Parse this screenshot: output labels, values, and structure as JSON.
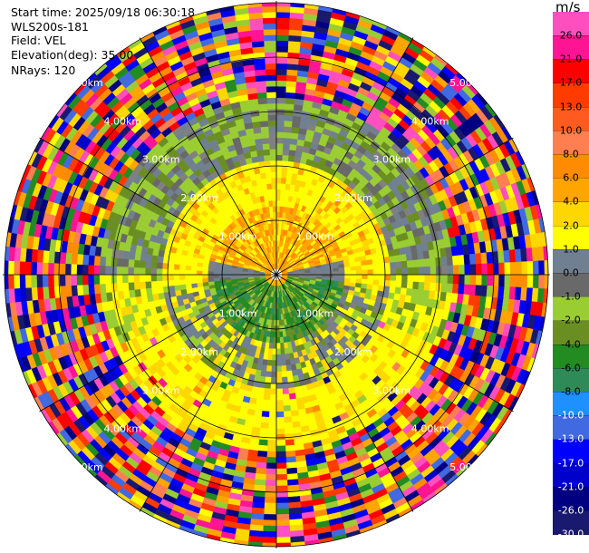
{
  "header": {
    "start_time": "Start time: 2025/09/18 06:30:18",
    "instrument": "WLS200s-181",
    "field": "Field: VEL",
    "elevation": "Elevation(deg): 35.00",
    "nrays": "NRays: 120"
  },
  "colorbar": {
    "unit": "m/s",
    "ticks": [
      "26.0",
      "21.0",
      "17.0",
      "13.0",
      "10.0",
      "8.0",
      "6.0",
      "4.0",
      "2.0",
      "1.0",
      "0.0",
      "-1.0",
      "-2.0",
      "-4.0",
      "-6.0",
      "-8.0",
      "-10.0",
      "-13.0",
      "-17.0",
      "-21.0",
      "-26.0",
      "-30.0"
    ],
    "light_ticks": [
      "-10.0",
      "-13.0",
      "-17.0",
      "-21.0",
      "-26.0",
      "-30.0"
    ],
    "colors": [
      "#ff4fbf",
      "#ff1493",
      "#ff0000",
      "#ff3b00",
      "#ff5a20",
      "#ff7f50",
      "#ff8c00",
      "#ffa500",
      "#ffd700",
      "#ffff00",
      "#708090",
      "#696969",
      "#9acd32",
      "#6b8e23",
      "#228b22",
      "#2e8b57",
      "#1e90ff",
      "#4169e1",
      "#0000ff",
      "#0000cd",
      "#000080",
      "#191970"
    ]
  },
  "range_ring_labels": [
    "1.00km",
    "2.00km",
    "3.00km",
    "4.00km",
    "5.00km"
  ],
  "ppi": {
    "field": "VEL",
    "nrays": 120,
    "elevation_deg": 35.0,
    "max_range_km": 5.0,
    "bands": [
      {
        "from_km": 0.0,
        "to_km": 1.3,
        "top": "orange/yellow",
        "bottom": "gray/olive/green"
      },
      {
        "from_km": 1.3,
        "to_km": 2.1,
        "top": "yellow",
        "bottom": "green/gray/yellow"
      },
      {
        "from_km": 2.1,
        "to_km": 3.3,
        "top": "gray/olive",
        "bottom": "yellow"
      },
      {
        "from_km": 3.3,
        "to_km": 5.0,
        "top": "noise",
        "bottom": "noise"
      }
    ]
  }
}
